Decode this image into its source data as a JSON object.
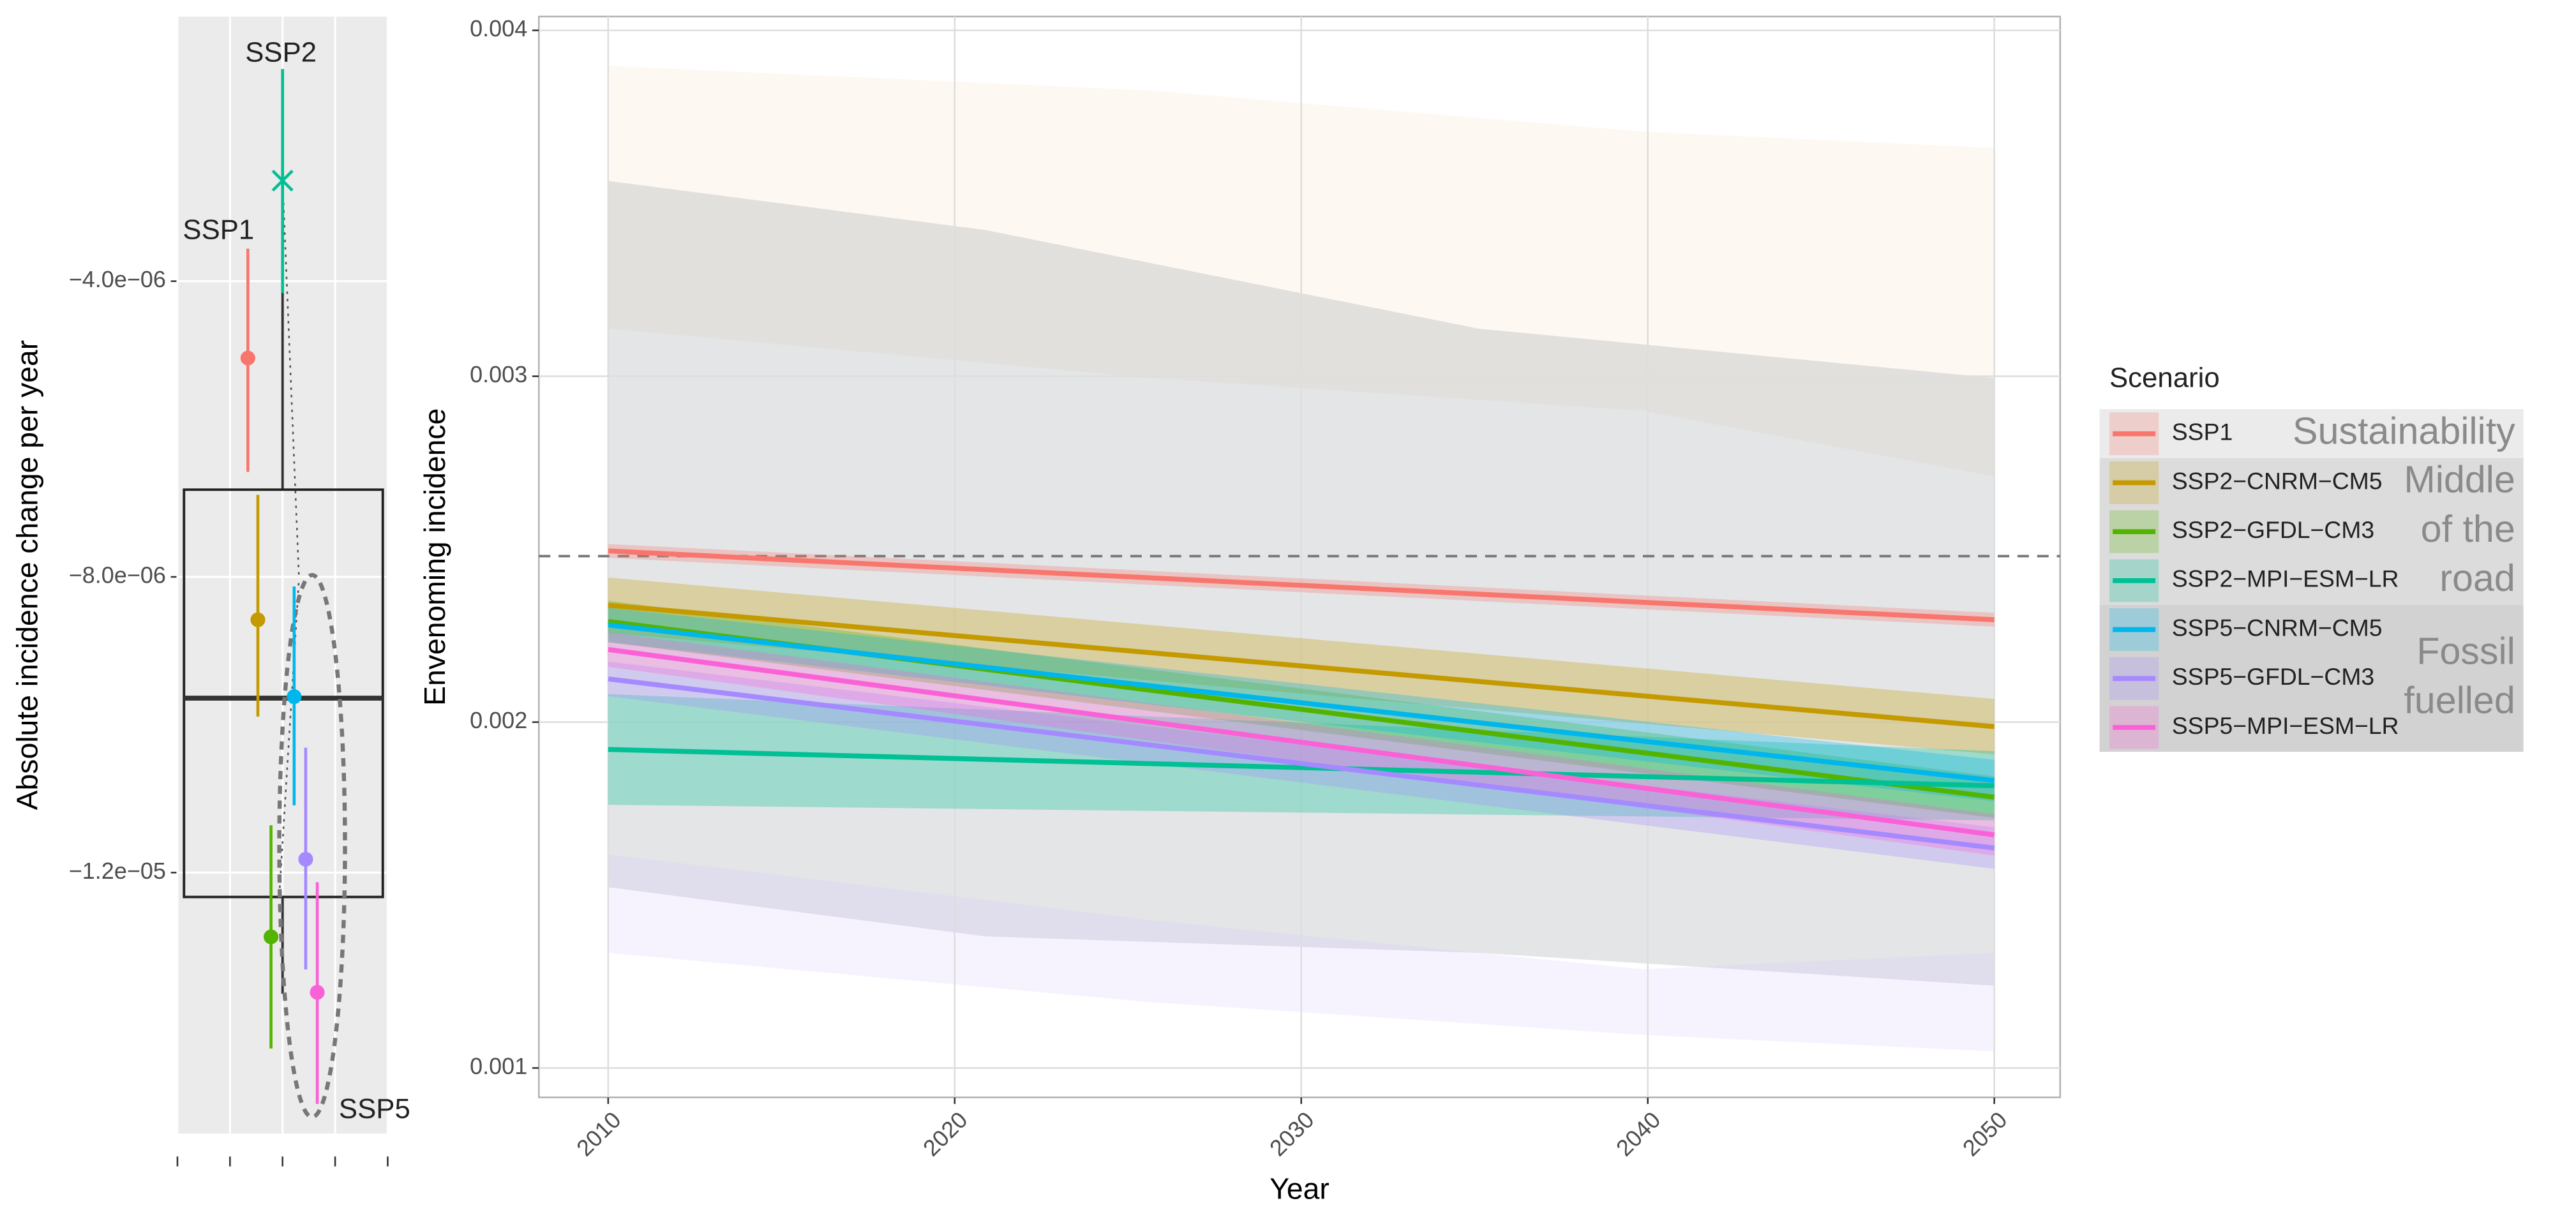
{
  "chart_data": [
    {
      "type": "pointrange",
      "ylabel": "Absolute incidence change per year",
      "ylim": [
        -1.553e-05,
        -4.2e-07
      ],
      "yticks": [
        {
          "value": -4e-06,
          "label": "−4.0e−06"
        },
        {
          "value": -8e-06,
          "label": "−8.0e−06"
        },
        {
          "value": -1.2e-05,
          "label": "−1.2e−05"
        }
      ],
      "xlim": [
        0,
        4
      ],
      "xticks": [
        0,
        1,
        2,
        3,
        4
      ],
      "x": [
        1.34,
        1.53,
        1.78,
        2.0,
        2.22,
        2.44,
        2.66
      ],
      "values": [
        -5.04e-06,
        -8.58e-06,
        -1.287e-05,
        -2.64e-06,
        -9.62e-06,
        -1.182e-05,
        -1.362e-05
      ],
      "lower": [
        -6.58e-06,
        -9.89e-06,
        -1.438e-05,
        -4.16e-06,
        -1.109e-05,
        -1.331e-05,
        -1.513e-05
      ],
      "upper": [
        -3.56e-06,
        -6.89e-06,
        -1.136e-05,
        -1.13e-06,
        -8.13e-06,
        -1.031e-05,
        -1.213e-05
      ],
      "colors": [
        "#F8766D",
        "#C49A00",
        "#53B400",
        "#00C094",
        "#00B6EB",
        "#A58AFF",
        "#FB61D7"
      ],
      "markers": [
        "circle",
        "circle",
        "circle",
        "cross",
        "circle",
        "circle",
        "circle"
      ],
      "box": {
        "whisker_high": -3.98e-06,
        "q3": -6.82e-06,
        "median": -9.64e-06,
        "q1": -1.233e-05,
        "whisker_low": -1.364e-05
      },
      "annotations": [
        "SSP1",
        "SSP2",
        "SSP5"
      ]
    },
    {
      "type": "line",
      "xlabel": "Year",
      "ylabel": "Envenoming incidence",
      "xlim": [
        2008.0,
        2051.9
      ],
      "ylim": [
        0.000915,
        0.00404
      ],
      "xticks": [
        2010,
        2020,
        2030,
        2040,
        2050
      ],
      "yticks": [
        0.001,
        0.002,
        0.003,
        0.004
      ],
      "grid": true,
      "reference_line": 0.00248,
      "x": [
        2010,
        2050
      ],
      "series": [
        {
          "name": "SSP1",
          "color": "#F8766D",
          "values": [
            0.002495,
            0.002296
          ],
          "lower": [
            0.002475,
            0.002276
          ],
          "upper": [
            0.002515,
            0.002316
          ]
        },
        {
          "name": "SSP2−CNRM−CM5",
          "color": "#C49A00",
          "values": [
            0.002338,
            0.001987
          ],
          "lower": [
            0.002258,
            0.001907
          ],
          "upper": [
            0.002418,
            0.002067
          ]
        },
        {
          "name": "SSP2−GFDL−CM3",
          "color": "#53B400",
          "values": [
            0.002291,
            0.001783
          ],
          "lower": [
            0.002231,
            0.001723
          ],
          "upper": [
            0.002351,
            0.001843
          ]
        },
        {
          "name": "SSP2−MPI−ESM−LR",
          "color": "#00C094",
          "values": [
            0.001921,
            0.001816
          ],
          "lower": [
            0.001761,
            0.001716
          ],
          "upper": [
            0.002081,
            0.001916
          ]
        },
        {
          "name": "SSP5−CNRM−CM5",
          "color": "#00B6EB",
          "values": [
            0.002281,
            0.001831
          ],
          "lower": [
            0.002231,
            0.001771
          ],
          "upper": [
            0.002331,
            0.001891
          ]
        },
        {
          "name": "SSP5−GFDL−CM3",
          "color": "#A58AFF",
          "values": [
            0.002125,
            0.001636
          ],
          "lower": [
            0.002075,
            0.001576
          ],
          "upper": [
            0.002175,
            0.001696
          ]
        },
        {
          "name": "SSP5−MPI−ESM−LR",
          "color": "#FB61D7",
          "values": [
            0.00221,
            0.001674
          ],
          "lower": [
            0.00216,
            0.001614
          ],
          "upper": [
            0.00226,
            0.001734
          ]
        }
      ],
      "legend": {
        "title": "Scenario",
        "groups": [
          [
            "Sustainability"
          ],
          [
            "Middle",
            "of the",
            "road"
          ],
          [
            "Fossil",
            "fuelled"
          ]
        ]
      }
    }
  ]
}
